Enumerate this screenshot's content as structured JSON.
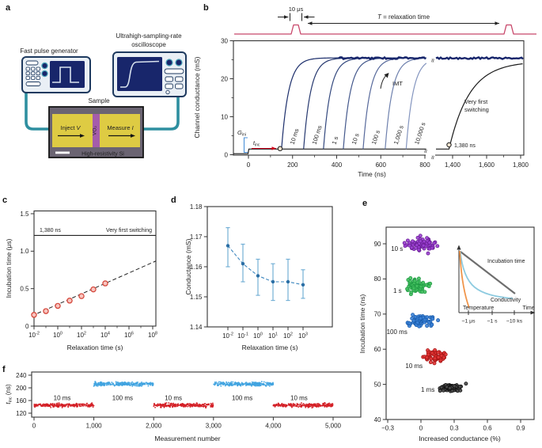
{
  "figure": {
    "background": "#ffffff"
  },
  "panel_labels": {
    "a": "a",
    "b": "b",
    "c": "c",
    "d": "d",
    "e": "e",
    "f": "f"
  },
  "schematic": {
    "pulse_generator_label": "Fast pulse generator",
    "oscilloscope_label_line1": "Ultrahigh-sampling-rate",
    "oscilloscope_label_line2": "oscilloscope",
    "sample_label": "Sample",
    "inject_text": "Inject ",
    "inject_symbol": "V",
    "measure_text": "Measure ",
    "measure_symbol": "I",
    "channel_material": "VO₂",
    "substrate_label": "High-resistivity Si",
    "colors": {
      "instrument_body": "#e9eff5",
      "instrument_border": "#1e3a5f",
      "screen": "#18266b",
      "screen_trace": "#d8e2ee",
      "cable": "#2e8fa0",
      "sample_base": "#6b6472",
      "electrode_gold": "#decb43",
      "vo2_purple": "#a55cab",
      "button_fill": "#ffffff"
    }
  },
  "chart_data": {
    "b": {
      "type": "line",
      "ylabel": "Channel conductance (mS)",
      "xlabel": "Time (ns)",
      "ylim": [
        0,
        30
      ],
      "y_ticks": [
        0,
        10,
        20,
        30
      ],
      "x_ticks_seg1": [
        "0",
        "200",
        "400",
        "600",
        "800"
      ],
      "x_tick_vals_seg1": [
        0,
        200,
        400,
        600,
        800
      ],
      "x_ticks_seg2": [
        "1,400",
        "1,600",
        "1,800"
      ],
      "x_tick_vals_seg2": [
        1400,
        1600,
        1800
      ],
      "pulse_width_label": "10 μs",
      "pulse_period_label_var": "T",
      "pulse_period_label_rest": " = relaxation time",
      "baseline_mS": 1.5,
      "pre_pulse_mS": 0.3,
      "saturation_mS": 25.5,
      "series": [
        {
          "name": "10 ms",
          "onset_ns": 150
        },
        {
          "name": "100 ms",
          "onset_ns": 250
        },
        {
          "name": "1 s",
          "onset_ns": 340
        },
        {
          "name": "10 s",
          "onset_ns": 430
        },
        {
          "name": "100 s",
          "onset_ns": 520
        },
        {
          "name": "1,000 s",
          "onset_ns": 620
        },
        {
          "name": "10,000 s",
          "onset_ns": 715
        }
      ],
      "imt_label": "IMT",
      "very_first": {
        "line1": "Very first",
        "line2": "switching",
        "onset_ns": 1380,
        "onset_label": "1,380 ns"
      },
      "g_ini": {
        "main": "G",
        "sub": "ini"
      },
      "t_inc": {
        "main": "t",
        "sub": "inc"
      },
      "colors": {
        "curves": [
          "#1c2e6b",
          "#26386f",
          "#33487e",
          "#44588c",
          "#57699b",
          "#6e80ad",
          "#8495bf"
        ],
        "first_switch": "#1a1a1a",
        "pulse": "#c8476a",
        "band": "#16256b",
        "g_ini": "#4a90d9",
        "t_inc": "#d0021b"
      }
    },
    "c": {
      "type": "scatter",
      "xlabel": "Relaxation time (s)",
      "ylabel": "Incubation time (μs)",
      "x_tick_exponents": [
        -2,
        0,
        2,
        4,
        6,
        8
      ],
      "x_minor_exponents": [
        -1,
        1,
        3,
        5,
        7
      ],
      "y_ticks": [
        "0",
        "0.5",
        "1.0",
        "1.5"
      ],
      "y_tick_vals": [
        0,
        0.5,
        1.0,
        1.5
      ],
      "points": {
        "relaxation_s": [
          0.01,
          0.1,
          1,
          10,
          100,
          1000,
          10000
        ],
        "incubation_us": [
          0.15,
          0.2,
          0.27,
          0.34,
          0.4,
          0.49,
          0.57
        ]
      },
      "ref_line": {
        "label_left": "1,380 ns",
        "label_right": "Very first switching",
        "value_us": 1.38,
        "plot_us": 1.21
      },
      "colors": {
        "marker_fill": "#f8c5c0",
        "marker_edge": "#d5493d",
        "line": "#222222"
      }
    },
    "d": {
      "type": "line",
      "xlabel": "Relaxation time (s)",
      "ylabel": "Conductance (mS)",
      "x_tick_exponents": [
        -2,
        -1,
        0,
        1,
        2,
        3
      ],
      "y_ticks": [
        "1.14",
        "1.15",
        "1.16",
        "1.17",
        "1.18"
      ],
      "y_tick_vals": [
        1.14,
        1.15,
        1.16,
        1.17,
        1.18
      ],
      "points": {
        "relaxation_s": [
          0.01,
          0.1,
          1,
          10,
          100,
          1000
        ],
        "conductance_mS": [
          1.167,
          1.161,
          1.157,
          1.155,
          1.155,
          1.154
        ],
        "err_up": [
          1.173,
          1.1675,
          1.1625,
          1.161,
          1.1625,
          1.159
        ],
        "err_down": [
          1.16,
          1.155,
          1.1505,
          1.1488,
          1.1488,
          1.1495
        ]
      },
      "colors": {
        "marker": "#2a6ea5",
        "error": "#74b0d6",
        "line": "#3d87bf"
      }
    },
    "e": {
      "type": "scatter",
      "xlabel": "Increased conductance (%)",
      "ylabel": "Incubation time (ns)",
      "x_ticks": [
        "−0.3",
        "0",
        "0.3",
        "0.6",
        "0.9"
      ],
      "x_tick_vals": [
        -0.3,
        0,
        0.3,
        0.6,
        0.9
      ],
      "y_ticks": [
        40,
        50,
        60,
        70,
        80,
        90
      ],
      "clusters": [
        {
          "label": "10 s",
          "center_pct": 0.02,
          "center_ns": 90,
          "spread_pct": 0.21,
          "spread_ns": 3.2,
          "n": 75,
          "fill": "#9b3fd1",
          "edge": "#6a1f96",
          "label_color": "#8e32c8",
          "label_pct": -0.27,
          "label_ns": 88
        },
        {
          "label": "1 s",
          "center_pct": -0.03,
          "center_ns": 78,
          "spread_pct": 0.2,
          "spread_ns": 3.0,
          "n": 70,
          "fill": "#45c161",
          "edge": "#1f9a43",
          "label_color": "#2eb350",
          "label_pct": -0.25,
          "label_ns": 76
        },
        {
          "label": "100 ms",
          "center_pct": 0.0,
          "center_ns": 68,
          "spread_pct": 0.21,
          "spread_ns": 2.8,
          "n": 75,
          "fill": "#3b82d8",
          "edge": "#1c5fae",
          "label_color": "#2f74cc",
          "label_pct": -0.31,
          "label_ns": 64.3
        },
        {
          "label": "10 ms",
          "center_pct": 0.13,
          "center_ns": 58,
          "spread_pct": 0.16,
          "spread_ns": 2.6,
          "n": 60,
          "fill": "#e23535",
          "edge": "#a81616",
          "label_color": "#d62020",
          "label_pct": -0.14,
          "label_ns": 54.6
        },
        {
          "label": "1 ms",
          "center_pct": 0.27,
          "center_ns": 49,
          "spread_pct": 0.17,
          "spread_ns": 2.2,
          "n": 55,
          "fill": "#4a4a4a",
          "edge": "#101010",
          "label_color": "#222222",
          "label_pct": 0.0,
          "label_ns": 47.9
        }
      ],
      "inset": {
        "lines": [
          {
            "label": "Incubation time",
            "color": "#6e6e6e"
          },
          {
            "label": "Conductivity",
            "color": "#8ecbe0"
          },
          {
            "label": "Temperature",
            "color": "#f0954a"
          }
        ],
        "x_ticks": [
          "~1 μs",
          "~1 s",
          "~10 ks"
        ],
        "xlabel": "Time"
      }
    },
    "f": {
      "type": "scatter",
      "ylabel_main": "t",
      "ylabel_sub": "inc",
      "ylabel_rest": " (ns)",
      "xlabel": "Measurement number",
      "y_ticks": [
        "120",
        "160",
        "200",
        "240"
      ],
      "y_tick_vals": [
        120,
        160,
        200,
        240
      ],
      "x_ticks": [
        "0",
        "1,000",
        "2,000",
        "3,000",
        "4,000",
        "5,000"
      ],
      "x_tick_vals": [
        0,
        1000,
        2000,
        3000,
        4000,
        5000
      ],
      "segments": [
        {
          "label": "10 ms",
          "meas_range": [
            0,
            1000
          ],
          "t_inc_ns": 145,
          "color": "#d41f26",
          "label_x_meas": 470
        },
        {
          "label": "100 ms",
          "meas_range": [
            1000,
            2000
          ],
          "t_inc_ns": 212,
          "color": "#3fa3e0",
          "label_x_meas": 1480
        },
        {
          "label": "10 ms",
          "meas_range": [
            2000,
            3000
          ],
          "t_inc_ns": 145,
          "color": "#d41f26",
          "label_x_meas": 2330
        },
        {
          "label": "100 ms",
          "meas_range": [
            3000,
            4000
          ],
          "t_inc_ns": 212,
          "color": "#3fa3e0",
          "label_x_meas": 3480
        },
        {
          "label": "10 ms",
          "meas_range": [
            4000,
            5000
          ],
          "t_inc_ns": 145,
          "color": "#d41f26",
          "label_x_meas": 4430
        }
      ]
    }
  }
}
